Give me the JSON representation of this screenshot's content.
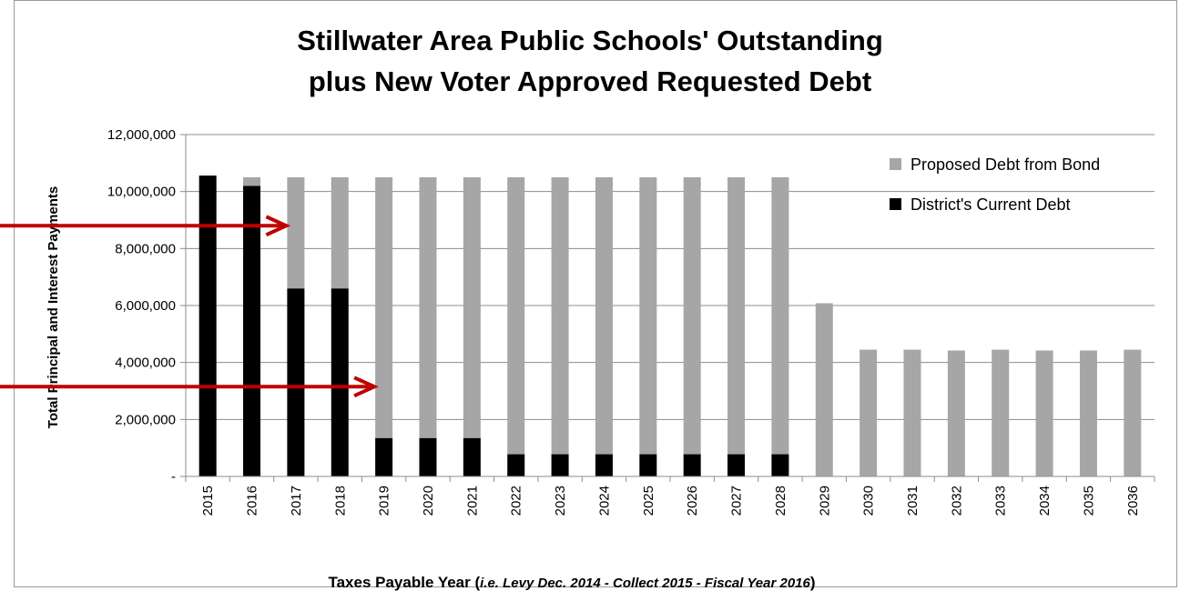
{
  "chart_data": {
    "type": "bar",
    "stacked": true,
    "title_line1": "Stillwater Area Public Schools' Outstanding",
    "title_line2": "plus New  Voter Approved Requested Debt",
    "ylabel": "Total Principal and Interest Payments",
    "xlabel_main": "Taxes Payable Year (",
    "xlabel_italic": "i.e. Levy Dec. 2014 - Collect 2015 - Fiscal Year 2016",
    "xlabel_end": ")",
    "ylim": [
      0,
      12000000
    ],
    "y_ticks": [
      {
        "value": 0,
        "label": "-"
      },
      {
        "value": 2000000,
        "label": "2,000,000"
      },
      {
        "value": 4000000,
        "label": "4,000,000"
      },
      {
        "value": 6000000,
        "label": "6,000,000"
      },
      {
        "value": 8000000,
        "label": "8,000,000"
      },
      {
        "value": 10000000,
        "label": "10,000,000"
      },
      {
        "value": 12000000,
        "label": "12,000,000"
      }
    ],
    "grid": true,
    "legend_position": "top-right",
    "categories": [
      "2015",
      "2016",
      "2017",
      "2018",
      "2019",
      "2020",
      "2021",
      "2022",
      "2023",
      "2024",
      "2025",
      "2026",
      "2027",
      "2028",
      "2029",
      "2030",
      "2031",
      "2032",
      "2033",
      "2034",
      "2035",
      "2036"
    ],
    "series": [
      {
        "name": "District's Current Debt",
        "color": "#000000",
        "values": [
          10560000,
          10200000,
          6600000,
          6600000,
          1350000,
          1350000,
          1350000,
          780000,
          780000,
          780000,
          780000,
          780000,
          780000,
          780000,
          0,
          0,
          0,
          0,
          0,
          0,
          0,
          0
        ]
      },
      {
        "name": "Proposed Debt from Bond",
        "color": "#a6a6a6",
        "values": [
          0,
          300000,
          3900000,
          3900000,
          9150000,
          9150000,
          9150000,
          9720000,
          9720000,
          9720000,
          9720000,
          9720000,
          9720000,
          9720000,
          6080000,
          4450000,
          4450000,
          4420000,
          4450000,
          4420000,
          4420000,
          4450000
        ]
      }
    ],
    "annotations": [
      {
        "type": "arrow",
        "color": "#c00000",
        "points_to_year": "2017",
        "at_value": 8800000
      },
      {
        "type": "arrow",
        "color": "#c00000",
        "points_to_year": "2019",
        "at_value": 3150000
      }
    ]
  }
}
